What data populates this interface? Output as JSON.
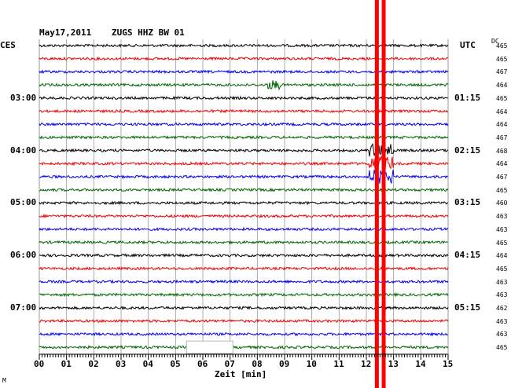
{
  "header": {
    "date": "May17,2011",
    "station": "ZUGS HHZ BW 01",
    "left_zone": "CES",
    "right_zone": "UTC",
    "dc_label": "DC"
  },
  "time_labels_left": [
    "03:00",
    "04:00",
    "05:00",
    "06:00",
    "07:00"
  ],
  "time_labels_right": [
    "01:15",
    "02:15",
    "03:15",
    "04:15",
    "05:15"
  ],
  "dc_values": [
    "465",
    "465",
    "467",
    "464",
    "465",
    "464",
    "464",
    "467",
    "468",
    "464",
    "467",
    "465",
    "460",
    "463",
    "463",
    "465",
    "464",
    "465",
    "463",
    "463",
    "462",
    "463",
    "463",
    "465"
  ],
  "x_axis": {
    "ticks": [
      "00",
      "01",
      "02",
      "03",
      "04",
      "05",
      "06",
      "07",
      "08",
      "09",
      "10",
      "11",
      "12",
      "13",
      "14",
      "15"
    ],
    "label": "Zeit [min]"
  },
  "footer_mark": "M",
  "colors": {
    "trace_cycle": [
      "#000000",
      "#ee0000",
      "#0000ee",
      "#006600"
    ],
    "event_marker": "#ff0000",
    "grid": "#999999"
  },
  "chart_data": {
    "type": "line",
    "title": "May17,2011   ZUGS HHZ BW 01",
    "xlabel": "Zeit [min]",
    "xlim": [
      0,
      15
    ],
    "trace_count": 24,
    "minutes_per_trace": 15,
    "event_markers_min": [
      12.4,
      12.65
    ],
    "event_burst_min": [
      12.1,
      13.0
    ],
    "event_burst_traces": [
      8,
      9,
      10
    ],
    "local_burst": {
      "trace": 3,
      "minute": 8.6
    },
    "data_gap": {
      "trace": 23,
      "from_min": 5.4,
      "to_min": 7.1
    }
  }
}
